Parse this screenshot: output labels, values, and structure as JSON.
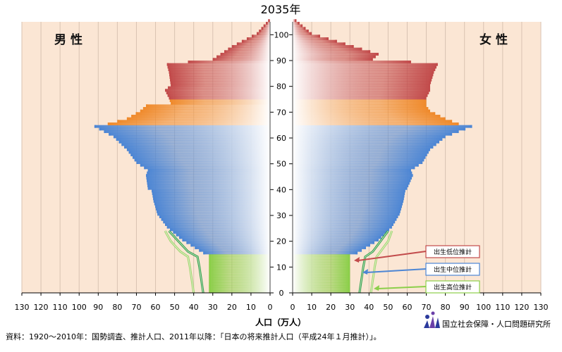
{
  "title": "2035年",
  "male_label": "男 性",
  "female_label": "女 性",
  "x_label": "人口（万人）",
  "source": "資料：1920～2010年：国勢調査、推計人口、2011年以降：「日本の将来推計人口（平成24年１月推計）」。",
  "institute": "国立社会保障・人口問題研究所",
  "colors": {
    "background": "#fbe6d4",
    "under15": "#8ccf4a",
    "age15_64": "#4d86d4",
    "age65_74": "#ef8a2c",
    "age75plus": "#c24b4b",
    "grid": "#d9c3b2"
  },
  "chart_data": {
    "type": "population_pyramid",
    "x_tick_labels_left": [
      "130",
      "120",
      "110",
      "100",
      "90",
      "80",
      "70",
      "60",
      "50",
      "40",
      "30",
      "20",
      "10",
      "0"
    ],
    "x_tick_labels_right": [
      "0",
      "10",
      "20",
      "30",
      "40",
      "50",
      "60",
      "70",
      "80",
      "90",
      "100",
      "110",
      "120",
      "130"
    ],
    "xlim": [
      0,
      130
    ],
    "y_tick_labels": [
      "0",
      "10",
      "20",
      "30",
      "40",
      "50",
      "60",
      "70",
      "80",
      "90",
      "100"
    ],
    "ylim": [
      0,
      105
    ],
    "age_groups": [
      {
        "name": "0-14",
        "color": "#8ccf4a"
      },
      {
        "name": "15-64",
        "color": "#4d86d4"
      },
      {
        "name": "65-74",
        "color": "#ef8a2c"
      },
      {
        "name": "75+",
        "color": "#c24b4b"
      }
    ],
    "male_points": [
      [
        0,
        32
      ],
      [
        5,
        32
      ],
      [
        10,
        32
      ],
      [
        14,
        32
      ],
      [
        15,
        35
      ],
      [
        20,
        46
      ],
      [
        25,
        54
      ],
      [
        30,
        59
      ],
      [
        35,
        61
      ],
      [
        39,
        62
      ],
      [
        40,
        64
      ],
      [
        45,
        65
      ],
      [
        47,
        64
      ],
      [
        50,
        70
      ],
      [
        55,
        75
      ],
      [
        60,
        82
      ],
      [
        62,
        87
      ],
      [
        64,
        92
      ],
      [
        65,
        85
      ],
      [
        67,
        75
      ],
      [
        70,
        68
      ],
      [
        72,
        65
      ],
      [
        73,
        52
      ],
      [
        75,
        53
      ],
      [
        78,
        55
      ],
      [
        80,
        52
      ],
      [
        85,
        53
      ],
      [
        88,
        54
      ],
      [
        89,
        43
      ],
      [
        90,
        30
      ],
      [
        95,
        20
      ],
      [
        100,
        7
      ],
      [
        105,
        1
      ]
    ],
    "female_points": [
      [
        0,
        30
      ],
      [
        5,
        30
      ],
      [
        10,
        30
      ],
      [
        14,
        30
      ],
      [
        15,
        34
      ],
      [
        20,
        45
      ],
      [
        25,
        52
      ],
      [
        30,
        56
      ],
      [
        35,
        58
      ],
      [
        39,
        59
      ],
      [
        40,
        60
      ],
      [
        45,
        63
      ],
      [
        47,
        62
      ],
      [
        50,
        68
      ],
      [
        55,
        72
      ],
      [
        60,
        80
      ],
      [
        62,
        87
      ],
      [
        64,
        94
      ],
      [
        65,
        87
      ],
      [
        67,
        80
      ],
      [
        70,
        72
      ],
      [
        72,
        70
      ],
      [
        73,
        70
      ],
      [
        75,
        70
      ],
      [
        78,
        72
      ],
      [
        80,
        72
      ],
      [
        85,
        74
      ],
      [
        88,
        76
      ],
      [
        89,
        62
      ],
      [
        90,
        42
      ],
      [
        92,
        45
      ],
      [
        95,
        32
      ],
      [
        100,
        10
      ],
      [
        105,
        2
      ]
    ],
    "male_under15_high": [
      [
        0,
        40
      ],
      [
        5,
        41
      ],
      [
        10,
        42
      ],
      [
        14,
        43
      ],
      [
        16,
        47
      ],
      [
        20,
        52
      ],
      [
        24,
        55
      ]
    ],
    "male_under15_mid": [
      [
        0,
        35
      ],
      [
        5,
        36
      ],
      [
        10,
        37
      ],
      [
        14,
        38
      ],
      [
        16,
        43
      ],
      [
        20,
        48
      ],
      [
        24,
        53
      ]
    ],
    "female_under15_high": [
      [
        0,
        41
      ],
      [
        5,
        42
      ],
      [
        10,
        43
      ],
      [
        14,
        44
      ],
      [
        16,
        46
      ],
      [
        20,
        50
      ],
      [
        24,
        52
      ]
    ],
    "female_under15_mid": [
      [
        0,
        35
      ],
      [
        5,
        36
      ],
      [
        10,
        37
      ],
      [
        14,
        38
      ],
      [
        16,
        42
      ],
      [
        20,
        46
      ],
      [
        24,
        50
      ]
    ],
    "legend": [
      {
        "label": "出生低位推計",
        "color": "#c24b4b"
      },
      {
        "label": "出生中位推計",
        "color": "#4d86d4"
      },
      {
        "label": "出生高位推計",
        "color": "#8ccf4a"
      }
    ]
  }
}
